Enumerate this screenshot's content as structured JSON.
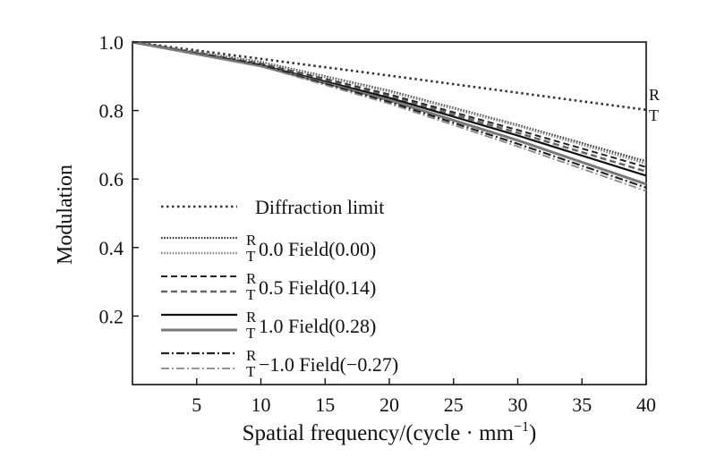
{
  "chart_data": {
    "type": "line",
    "title": "",
    "xlabel": "Spatial frequency/(cycle · mm",
    "xlabel_sup": "−1",
    "xlabel_close": ")",
    "ylabel": "Modulation",
    "xlim": [
      0,
      40
    ],
    "ylim": [
      0,
      1.0
    ],
    "x_ticks": [
      5,
      10,
      15,
      20,
      25,
      30,
      35,
      40
    ],
    "y_ticks": [
      0.2,
      0.4,
      0.6,
      0.8,
      1.0
    ],
    "y_tick_labels": [
      "0.2",
      "0.4",
      "0.6",
      "0.8",
      "1.0"
    ],
    "grid": false,
    "legend_position": "bottom-left",
    "end_annotation": {
      "r": "R",
      "t": "T"
    },
    "series": [
      {
        "name": "Diffraction limit",
        "style": "dotted",
        "color": "#333333",
        "x": [
          0,
          10,
          20,
          30,
          40
        ],
        "values": [
          1.0,
          0.951,
          0.902,
          0.852,
          0.802
        ]
      },
      {
        "name": "0.0 Field(0.00) R",
        "field_label": "0.0 Field(0.00)",
        "component": "R",
        "style": "fine-dotted",
        "color": "#333333",
        "x": [
          0,
          10,
          20,
          30,
          40
        ],
        "values": [
          1.0,
          0.942,
          0.858,
          0.758,
          0.652
        ]
      },
      {
        "name": "0.0 Field(0.00) T",
        "field_label": "0.0 Field(0.00)",
        "component": "T",
        "style": "fine-dotted",
        "color": "#888888",
        "x": [
          0,
          10,
          20,
          30,
          40
        ],
        "values": [
          1.0,
          0.94,
          0.855,
          0.755,
          0.645
        ]
      },
      {
        "name": "0.5 Field(0.14) R",
        "field_label": "0.5 Field(0.14)",
        "component": "R",
        "style": "dashed",
        "color": "#222222",
        "x": [
          0,
          10,
          20,
          30,
          40
        ],
        "values": [
          1.0,
          0.937,
          0.847,
          0.743,
          0.635
        ]
      },
      {
        "name": "0.5 Field(0.14) T",
        "field_label": "0.5 Field(0.14)",
        "component": "T",
        "style": "dashed",
        "color": "#666666",
        "x": [
          0,
          10,
          20,
          30,
          40
        ],
        "values": [
          1.0,
          0.935,
          0.842,
          0.735,
          0.622
        ]
      },
      {
        "name": "1.0 Field(0.28) R",
        "field_label": "1.0 Field(0.28)",
        "component": "R",
        "style": "solid",
        "color": "#111111",
        "x": [
          0,
          10,
          20,
          30,
          40
        ],
        "values": [
          1.0,
          0.933,
          0.837,
          0.727,
          0.61
        ]
      },
      {
        "name": "1.0 Field(0.28) T",
        "field_label": "1.0 Field(0.28)",
        "component": "T",
        "style": "solid",
        "color": "#777777",
        "x": [
          0,
          10,
          20,
          30,
          40
        ],
        "values": [
          1.0,
          0.93,
          0.83,
          0.713,
          0.585
        ]
      },
      {
        "name": "−1.0 Field(−0.27) R",
        "field_label": "−1.0 Field(−0.27)",
        "component": "R",
        "style": "dash-dot",
        "color": "#222222",
        "x": [
          0,
          10,
          20,
          30,
          40
        ],
        "values": [
          1.0,
          0.931,
          0.825,
          0.703,
          0.575
        ]
      },
      {
        "name": "−1.0 Field(−0.27) T",
        "field_label": "−1.0 Field(−0.27)",
        "component": "T",
        "style": "dash-dot",
        "color": "#888888",
        "x": [
          0,
          10,
          20,
          30,
          40
        ],
        "values": [
          1.0,
          0.929,
          0.82,
          0.695,
          0.565
        ]
      }
    ],
    "legend": [
      {
        "label": "Diffraction limit",
        "series": [
          0
        ]
      },
      {
        "r": "R",
        "t": "T",
        "label": "0.0 Field(0.00)",
        "series": [
          1,
          2
        ]
      },
      {
        "r": "R",
        "t": "T",
        "label": "0.5 Field(0.14)",
        "series": [
          3,
          4
        ]
      },
      {
        "r": "R",
        "t": "T",
        "label": "1.0 Field(0.28)",
        "series": [
          5,
          6
        ]
      },
      {
        "r": "R",
        "t": "T",
        "label": "−1.0 Field(−0.27)",
        "series": [
          7,
          8
        ]
      }
    ]
  }
}
